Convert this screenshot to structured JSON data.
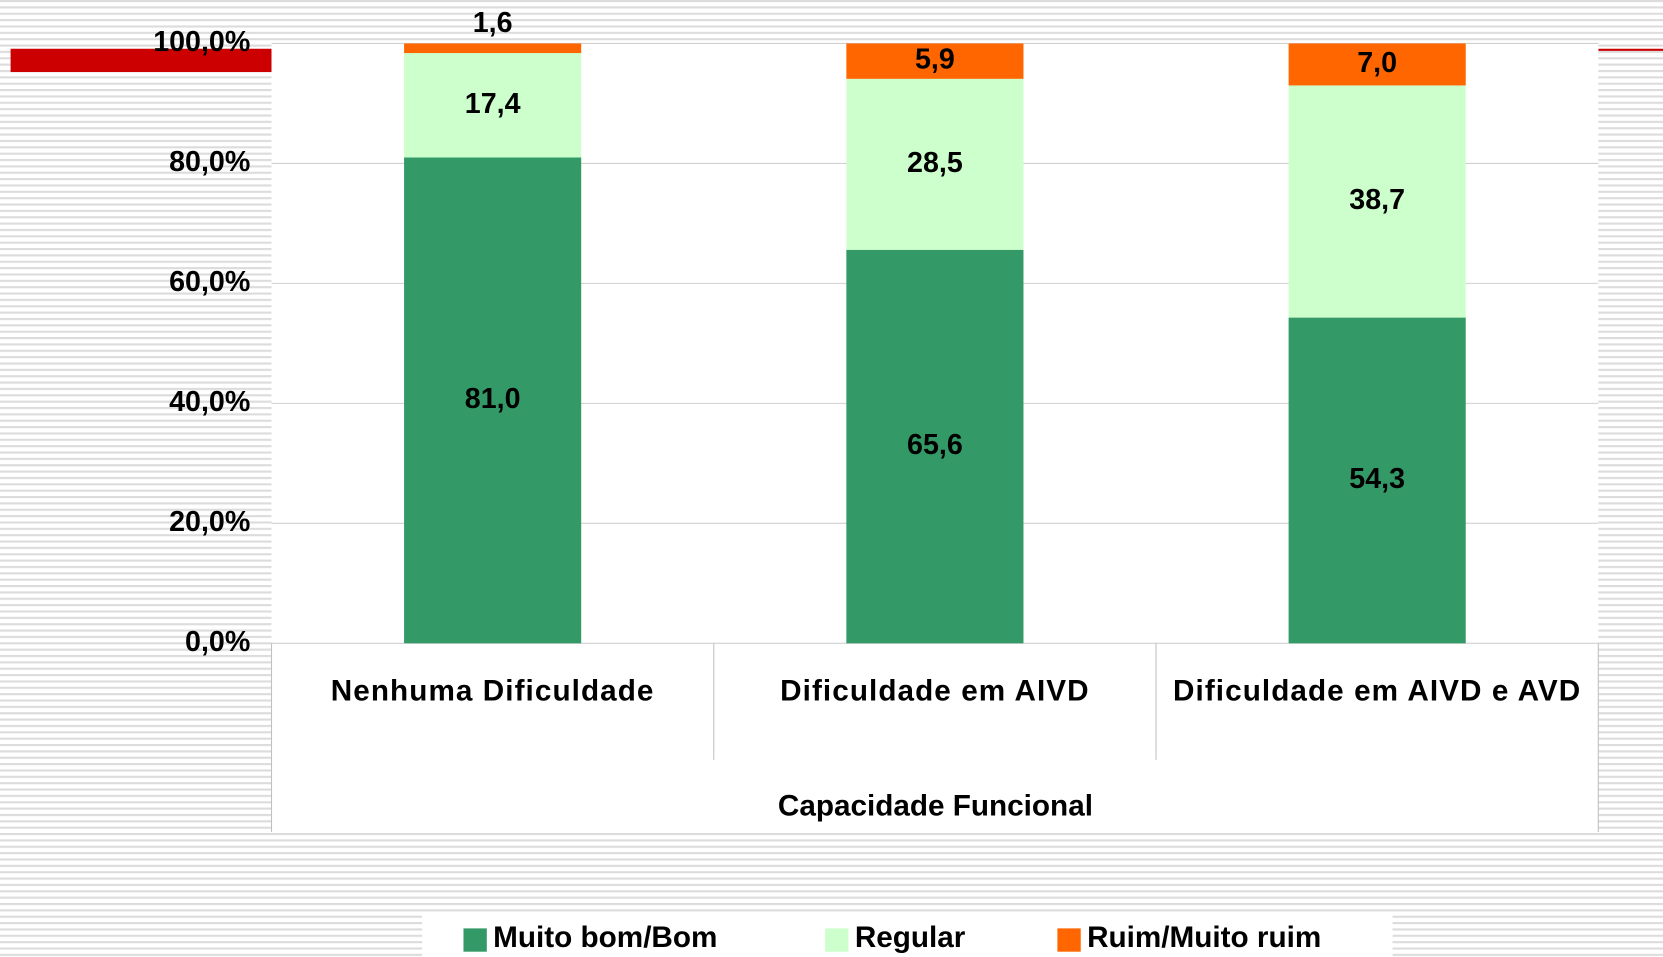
{
  "chart_data": {
    "type": "bar",
    "stacked": true,
    "x_label": "Capacidade Funcional",
    "categories": [
      "Nenhuma Dificuldade",
      "Dificuldade em AIVD",
      "Dificuldade em AIVD e AVD"
    ],
    "series": [
      {
        "name": "Muito bom/Bom",
        "color": "#339966",
        "values": [
          81.0,
          65.6,
          54.3
        ],
        "value_labels": [
          "81,0",
          "65,6",
          "54,3"
        ]
      },
      {
        "name": "Regular",
        "color": "#ccffcc",
        "values": [
          17.4,
          28.5,
          38.7
        ],
        "value_labels": [
          "17,4",
          "28,5",
          "38,7"
        ]
      },
      {
        "name": "Ruim/Muito ruim",
        "color": "#ff6600",
        "values": [
          1.6,
          5.9,
          7.0
        ],
        "value_labels": [
          "1,6",
          "5,9",
          "7,0"
        ]
      }
    ],
    "ylim": [
      0,
      100
    ],
    "yticks": [
      {
        "value": 0,
        "label": "0,0%"
      },
      {
        "value": 20,
        "label": "20,0%"
      },
      {
        "value": 40,
        "label": "40,0%"
      },
      {
        "value": 60,
        "label": "60,0%"
      },
      {
        "value": 80,
        "label": "80,0%"
      },
      {
        "value": 100,
        "label": "100,0%"
      }
    ],
    "grid": true,
    "legend": "bottom"
  }
}
